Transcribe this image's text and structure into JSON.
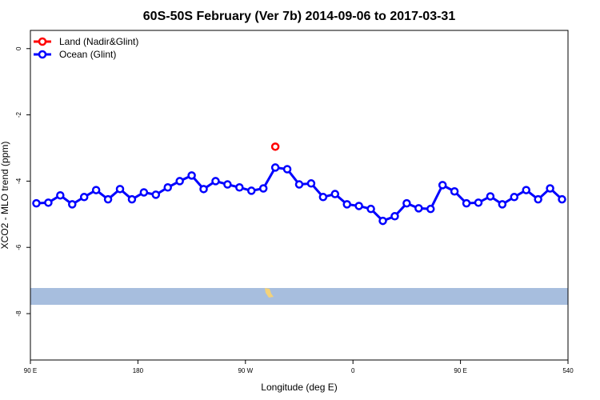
{
  "chart_data": {
    "type": "line",
    "title": "60S-50S February (Ver 7b)   2014-09-06 to 2017-03-31",
    "xlabel": "Longitude (deg E)",
    "ylabel": "XCO2 - MLO trend (ppm)",
    "xlim": [
      90,
      540
    ],
    "xticks": [
      {
        "value": 90,
        "label": "90 E"
      },
      180,
      {
        "value": 270,
        "label": "90 W"
      },
      {
        "value": 360,
        "label": "0"
      },
      {
        "value": 450,
        "label": "90 E"
      },
      540
    ],
    "ylim": [
      -9.4,
      0.55
    ],
    "yticks": [
      0,
      -2,
      -4,
      -6,
      -8
    ],
    "legend": "top-left",
    "series": [
      {
        "name": "Land (Nadir&Glint)",
        "color": "#ff0000",
        "x": [
          295
        ],
        "values": [
          -2.96
        ]
      },
      {
        "name": "Ocean (Glint)",
        "color": "#0000ff",
        "x": [
          95,
          105,
          115,
          125,
          135,
          145,
          155,
          165,
          175,
          185,
          195,
          205,
          215,
          225,
          235,
          245,
          255,
          265,
          275,
          285,
          295,
          305,
          315,
          325,
          335,
          345,
          355,
          365,
          375,
          385,
          395,
          405,
          415,
          425,
          435,
          445,
          455,
          465,
          475,
          485,
          495,
          505,
          515,
          525,
          535
        ],
        "values": [
          -4.67,
          -4.65,
          -4.43,
          -4.7,
          -4.48,
          -4.27,
          -4.55,
          -4.24,
          -4.55,
          -4.34,
          -4.41,
          -4.19,
          -4.0,
          -3.83,
          -4.24,
          -4.0,
          -4.1,
          -4.19,
          -4.29,
          -4.22,
          -3.59,
          -3.64,
          -4.1,
          -4.07,
          -4.48,
          -4.39,
          -4.7,
          -4.75,
          -4.84,
          -5.2,
          -5.06,
          -4.67,
          -4.82,
          -4.84,
          -4.12,
          -4.31,
          -4.67,
          -4.65,
          -4.46,
          -4.7,
          -4.48,
          -4.27,
          -4.55,
          -4.22,
          -4.55
        ]
      }
    ]
  }
}
